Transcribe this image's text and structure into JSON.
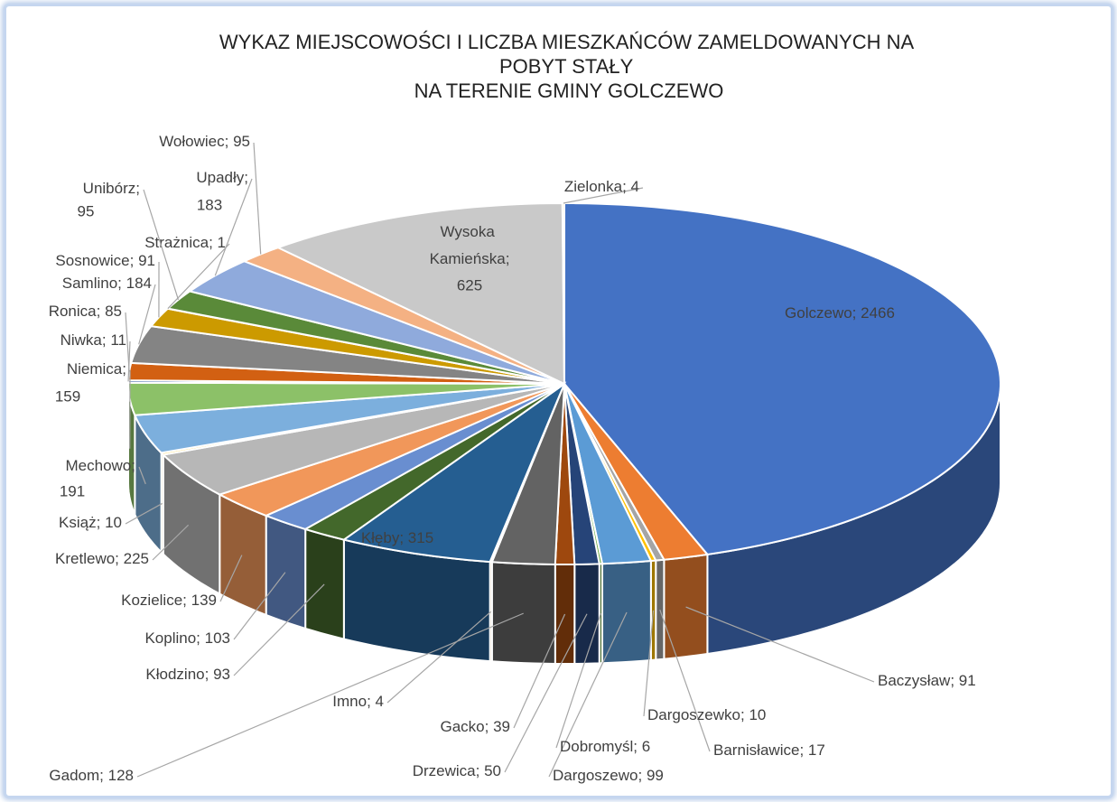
{
  "chart_data": {
    "type": "pie3d",
    "title": "WYKAZ MIEJSCOWOŚCI I LICZBA MIESZKAŃCÓW ZAMELDOWANYCH NA POBYT STAŁY NA TERENIE GMINY GOLCZEWO",
    "categories": [
      "Golczewo",
      "Baczysław",
      "Barnisławice",
      "Dargoszewko",
      "Dargoszewo",
      "Dobromyśl",
      "Drzewica",
      "Gacko",
      "Gadom",
      "Imno",
      "Kłęby",
      "Kłodzino",
      "Koplino",
      "Kozielice",
      "Kretlewo",
      "Książ",
      "Mechowo",
      "Niemica",
      "Niwka",
      "Ronica",
      "Samlino",
      "Sosnowice",
      "Strażnica",
      "Unibórz",
      "Upadły",
      "Wołowiec",
      "Wysoka Kamieńska",
      "Zielonka"
    ],
    "values": [
      2466,
      91,
      17,
      10,
      99,
      6,
      50,
      39,
      128,
      4,
      315,
      93,
      103,
      139,
      225,
      10,
      191,
      159,
      11,
      85,
      184,
      91,
      1,
      95,
      183,
      95,
      625,
      4
    ],
    "colors": [
      "#4472c4",
      "#ed7d31",
      "#a5a5a5",
      "#ffc000",
      "#5b9bd5",
      "#70ad47",
      "#264478",
      "#9e480e",
      "#636363",
      "#997300",
      "#255e91",
      "#43682b",
      "#698ed0",
      "#f1975a",
      "#b7b7b7",
      "#ffcd33",
      "#7cafdd",
      "#8cc168",
      "#335aa1",
      "#d26012",
      "#848484",
      "#cc9a00",
      "#3c7dc4",
      "#5a8a39",
      "#8faadc",
      "#f4b183",
      "#c9c9c9",
      "#ffd966"
    ]
  }
}
